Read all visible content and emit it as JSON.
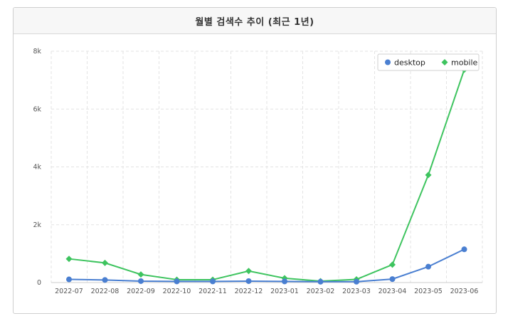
{
  "panel": {
    "title": "월별 검색수 추이 (최근 1년)"
  },
  "colors": {
    "desktop": "#4a7fd1",
    "mobile": "#3ec45f",
    "grid": "#e3e3e3"
  },
  "chart_data": {
    "type": "line",
    "title": "월별 검색수 추이 (최근 1년)",
    "x": [
      "2022-07",
      "2022-08",
      "2022-09",
      "2022-10",
      "2022-11",
      "2022-12",
      "2023-01",
      "2023-02",
      "2023-03",
      "2023-04",
      "2023-05",
      "2023-06"
    ],
    "yticks": [
      0,
      2000,
      4000,
      6000,
      8000
    ],
    "ytick_labels": [
      "0",
      "2k",
      "4k",
      "6k",
      "8k"
    ],
    "ylim": [
      0,
      8000
    ],
    "grid": true,
    "legend_position": "top-right",
    "series": [
      {
        "name": "desktop",
        "marker": "circle",
        "color": "#4a7fd1",
        "values": [
          110,
          90,
          50,
          40,
          40,
          50,
          40,
          30,
          30,
          120,
          550,
          1150
        ]
      },
      {
        "name": "mobile",
        "marker": "diamond",
        "color": "#3ec45f",
        "values": [
          820,
          680,
          280,
          100,
          100,
          400,
          150,
          50,
          110,
          620,
          3720,
          7360
        ]
      }
    ]
  }
}
